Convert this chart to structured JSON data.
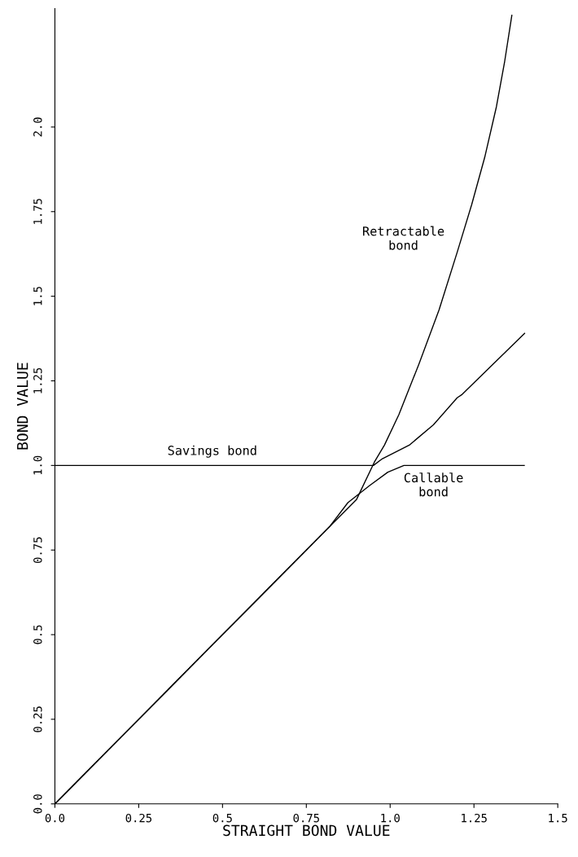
{
  "chart_data": {
    "type": "line",
    "xlabel": "STRAIGHT BOND VALUE",
    "ylabel": "BOND VALUE",
    "xlim": [
      0,
      1.5
    ],
    "ylim": [
      0,
      2.35
    ],
    "grid": false,
    "legend": false,
    "marker": "none",
    "line_style": "solid",
    "xticks": [
      {
        "value": 0,
        "label": "0.0"
      },
      0.25,
      0.5,
      0.75,
      {
        "value": 1,
        "label": "1.0"
      },
      1.25,
      1.5
    ],
    "yticks": [
      {
        "value": 0,
        "label": "0.0"
      },
      0.25,
      0.5,
      0.75,
      {
        "value": 1,
        "label": "1.0"
      },
      1.25,
      1.5,
      1.75,
      {
        "value": 2,
        "label": "2.0"
      }
    ],
    "series": [
      {
        "color": "#000000",
        "x": [
          0,
          0.25,
          0.5,
          0.75,
          0.83,
          0.9,
          0.953,
          0.983,
          1.026,
          1.086,
          1.146,
          1.2,
          1.243,
          1.282,
          1.317,
          1.341,
          1.363
        ],
        "values": [
          0,
          0.25,
          0.5,
          0.75,
          0.83,
          0.9,
          1.01,
          1.06,
          1.15,
          1.3,
          1.46,
          1.63,
          1.77,
          1.91,
          2.06,
          2.19,
          2.33
        ]
      },
      {
        "color": "#000000",
        "x": [
          0,
          0.95,
          0.977,
          1.057,
          1.129,
          1.2,
          1.215,
          1.401
        ],
        "values": [
          1,
          1,
          1.02,
          1.06,
          1.12,
          1.2,
          1.21,
          1.39
        ]
      },
      {
        "color": "#000000",
        "x": [
          0,
          0.25,
          0.5,
          0.75,
          0.82,
          0.874,
          0.938,
          0.993,
          1.041,
          1.4
        ],
        "values": [
          0,
          0.25,
          0.5,
          0.75,
          0.82,
          0.89,
          0.94,
          0.98,
          1.0,
          1.0
        ]
      }
    ],
    "annotations": [
      "Retractable\nbond",
      "Savings bond",
      "Callable\nbond"
    ]
  }
}
